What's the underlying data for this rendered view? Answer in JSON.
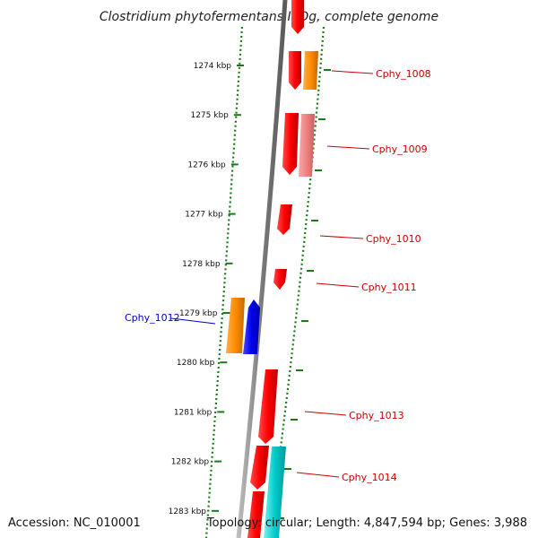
{
  "title": "Clostridium phytofermentans ISDg, complete genome",
  "footer": {
    "accession": "Accession: NC_010001",
    "topology": "Topology: circular; Length: 4,847,594 bp; Genes: 3,988"
  },
  "scale": {
    "ticks": [
      "1274 kbp",
      "1275 kbp",
      "1276 kbp",
      "1277 kbp",
      "1278 kbp",
      "1279 kbp",
      "1280 kbp",
      "1281 kbp",
      "1282 kbp",
      "1283 kbp"
    ]
  },
  "colors": {
    "backbone": "#7a7a7a",
    "dotted_track": "#1a7a1a",
    "tick_mark": "#1a7a1a",
    "forward_label": "#cc0000",
    "reverse_label": "#0000cc",
    "gene_red": "#ff0000",
    "gene_orange": "#ff8c00",
    "gene_pink": "#f08080",
    "gene_blue": "#0000ee",
    "gene_cyan": "#00cccc"
  },
  "gene_labels": [
    {
      "text": "Cphy_1008",
      "strand": "forward"
    },
    {
      "text": "Cphy_1009",
      "strand": "forward"
    },
    {
      "text": "Cphy_1010",
      "strand": "forward"
    },
    {
      "text": "Cphy_1011",
      "strand": "forward"
    },
    {
      "text": "Cphy_1012",
      "strand": "reverse"
    },
    {
      "text": "Cphy_1013",
      "strand": "forward"
    },
    {
      "text": "Cphy_1014",
      "strand": "forward"
    }
  ]
}
